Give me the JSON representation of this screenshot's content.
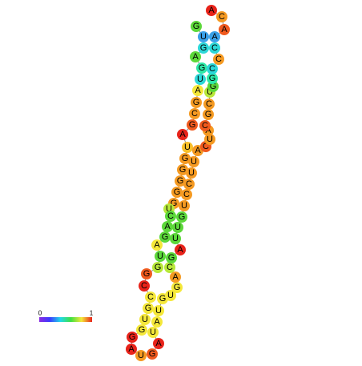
{
  "nodes": [
    {
      "label": "G",
      "color": "#5cd83a"
    },
    {
      "label": "U",
      "color": "#3aa0e8"
    },
    {
      "label": "G",
      "color": "#2cd8d8"
    },
    {
      "label": "A",
      "color": "#5cd83a"
    },
    {
      "label": "G",
      "color": "#2ee8a8"
    },
    {
      "label": "U",
      "color": "#2cd8d8"
    },
    {
      "label": "A",
      "color": "#f5e83a"
    },
    {
      "label": "G",
      "color": "#f59a22"
    },
    {
      "label": "C",
      "color": "#f59a22"
    },
    {
      "label": "G",
      "color": "#f05a1e"
    },
    {
      "label": "A",
      "color": "#e8231a"
    },
    {
      "label": "U",
      "color": "#f8c02a"
    },
    {
      "label": "G",
      "color": "#f59a22"
    },
    {
      "label": "G",
      "color": "#f59a22"
    },
    {
      "label": "G",
      "color": "#f59a22"
    },
    {
      "label": "G",
      "color": "#f59a22"
    },
    {
      "label": "G",
      "color": "#f59a22"
    },
    {
      "label": "U",
      "color": "#b8e83a"
    },
    {
      "label": "C",
      "color": "#5cd83a"
    },
    {
      "label": "A",
      "color": "#5cd83a"
    },
    {
      "label": "G",
      "color": "#5cd83a"
    },
    {
      "label": "A",
      "color": "#f5e83a"
    },
    {
      "label": "U",
      "color": "#5cd83a"
    },
    {
      "label": "G",
      "color": "#b8e83a"
    },
    {
      "label": "G",
      "color": "#f05a1e"
    },
    {
      "label": "C",
      "color": "#e8231a"
    },
    {
      "label": "C",
      "color": "#f5e83a"
    },
    {
      "label": "G",
      "color": "#f5e83a"
    },
    {
      "label": "U",
      "color": "#f5e83a"
    },
    {
      "label": "G",
      "color": "#f5e83a"
    },
    {
      "label": "G",
      "color": "#e8231a"
    },
    {
      "label": "A",
      "color": "#e8231a"
    },
    {
      "label": "U",
      "color": "#f59a22"
    },
    {
      "label": "G",
      "color": "#f05a1e"
    },
    {
      "label": "A",
      "color": "#e8231a"
    },
    {
      "label": "U",
      "color": "#f5e83a"
    },
    {
      "label": "A",
      "color": "#f5e83a"
    },
    {
      "label": "U",
      "color": "#f5e83a"
    },
    {
      "label": "G",
      "color": "#f5e83a"
    },
    {
      "label": "U",
      "color": "#f5e83a"
    },
    {
      "label": "G",
      "color": "#f5e83a"
    },
    {
      "label": "A",
      "color": "#f59a22"
    },
    {
      "label": "C",
      "color": "#b8e83a"
    },
    {
      "label": "G",
      "color": "#5cd83a"
    },
    {
      "label": "A",
      "color": "#e8231a"
    },
    {
      "label": "U",
      "color": "#5cd83a"
    },
    {
      "label": "U",
      "color": "#5cd83a"
    },
    {
      "label": "G",
      "color": "#5cd83a"
    },
    {
      "label": "U",
      "color": "#f59a22"
    },
    {
      "label": "C",
      "color": "#f59a22"
    },
    {
      "label": "C",
      "color": "#f59a22"
    },
    {
      "label": "U",
      "color": "#f59a22"
    },
    {
      "label": "U",
      "color": "#f59a22"
    },
    {
      "label": "A",
      "color": "#f59a22"
    },
    {
      "label": "C",
      "color": "#f05a1e"
    },
    {
      "label": "U",
      "color": "#f59a22"
    },
    {
      "label": "A",
      "color": "#f59a22"
    },
    {
      "label": "C",
      "color": "#f05a1e"
    },
    {
      "label": "G",
      "color": "#f59a22"
    },
    {
      "label": "C",
      "color": "#f59a22"
    },
    {
      "label": "U",
      "color": "#b8e83a"
    },
    {
      "label": "G",
      "color": "#5cd83a"
    },
    {
      "label": "G",
      "color": "#2ee8a8"
    },
    {
      "label": "C",
      "color": "#2cd8d8"
    },
    {
      "label": "C",
      "color": "#f59a22"
    },
    {
      "label": "C",
      "color": "#2cd8d8"
    },
    {
      "label": "A",
      "color": "#3aa0e8"
    },
    {
      "label": "A",
      "color": "#f05a1e"
    },
    {
      "label": "C",
      "color": "#f59a22"
    },
    {
      "label": "A",
      "color": "#e8231a"
    }
  ],
  "colorbar": {
    "min": 0,
    "max": 1
  }
}
